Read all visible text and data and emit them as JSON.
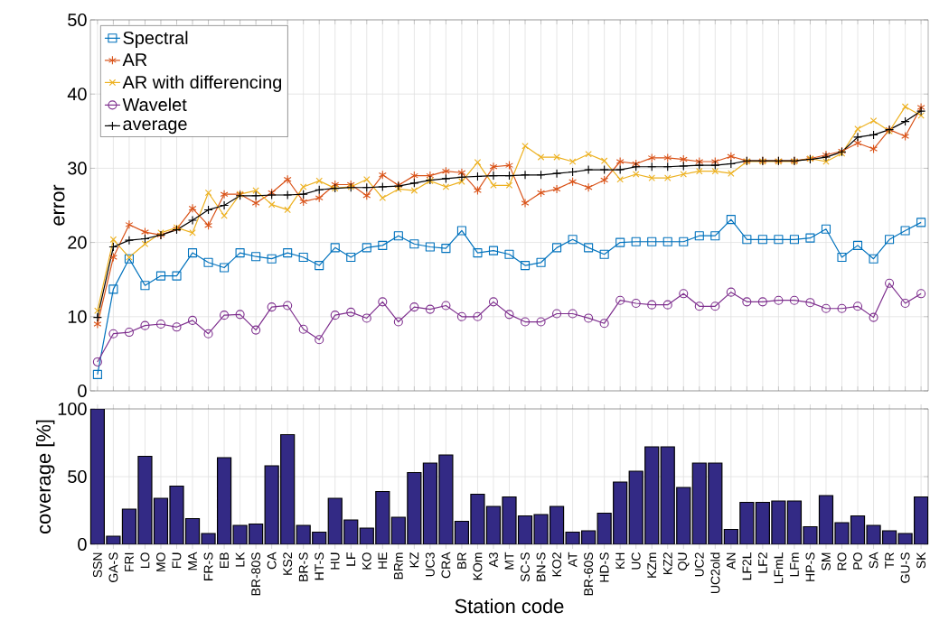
{
  "chart_data": [
    {
      "type": "line",
      "ylabel": "error",
      "ylim": [
        0,
        50
      ],
      "yticks": [
        0,
        10,
        20,
        30,
        40,
        50
      ],
      "grid": true,
      "legend": "top left",
      "tick_labels": "y",
      "series": [
        {
          "name": "Spectral",
          "color": "#0072bd",
          "marker": "square",
          "values": [
            2.2,
            13.7,
            17.8,
            14.2,
            15.5,
            15.5,
            18.6,
            17.3,
            16.6,
            18.6,
            18.1,
            17.8,
            18.6,
            18.0,
            16.9,
            19.3,
            18.0,
            19.3,
            19.6,
            20.9,
            19.8,
            19.4,
            19.2,
            21.6,
            18.6,
            18.9,
            18.4,
            16.9,
            17.3,
            19.3,
            20.4,
            19.3,
            18.4,
            20.0,
            20.1,
            20.1,
            20.1,
            20.1,
            20.9,
            20.9,
            23.1,
            20.4,
            20.4,
            20.4,
            20.4,
            20.6,
            21.8,
            18.0,
            19.6,
            17.8,
            20.4,
            21.6,
            22.7
          ]
        },
        {
          "name": "AR",
          "color": "#d95319",
          "marker": "cross",
          "values": [
            9.0,
            18.0,
            22.4,
            21.4,
            21.0,
            21.8,
            24.6,
            22.3,
            26.5,
            26.5,
            25.3,
            26.7,
            28.5,
            25.5,
            26.0,
            27.8,
            27.8,
            26.3,
            29.1,
            27.7,
            29.0,
            29.0,
            29.6,
            29.4,
            27.0,
            30.2,
            30.4,
            25.3,
            26.7,
            27.2,
            28.2,
            27.4,
            28.4,
            30.9,
            30.6,
            31.4,
            31.4,
            31.2,
            30.9,
            30.9,
            31.6,
            31.0,
            31.0,
            31.0,
            31.0,
            31.3,
            31.8,
            32.3,
            33.4,
            32.6,
            35.2,
            34.3,
            38.2
          ]
        },
        {
          "name": "AR with differencing",
          "color": "#edb120",
          "marker": "cross",
          "values": [
            10.8,
            20.4,
            18.0,
            19.8,
            21.3,
            22.0,
            21.3,
            26.7,
            23.6,
            26.5,
            27.0,
            25.1,
            24.4,
            27.5,
            28.3,
            27.3,
            27.5,
            28.5,
            26.0,
            27.2,
            27.0,
            28.3,
            27.5,
            28.2,
            30.8,
            27.7,
            27.7,
            33.0,
            31.5,
            31.5,
            30.9,
            31.9,
            31.0,
            28.5,
            29.2,
            28.7,
            28.7,
            29.2,
            29.6,
            29.6,
            29.3,
            30.9,
            30.9,
            30.9,
            30.9,
            31.3,
            30.9,
            32.0,
            35.3,
            36.4,
            35.0,
            38.3,
            37.1
          ]
        },
        {
          "name": "Wavelet",
          "color": "#7e2f8e",
          "marker": "circle",
          "values": [
            3.9,
            7.7,
            7.9,
            8.8,
            9.0,
            8.6,
            9.5,
            7.7,
            10.2,
            10.3,
            8.2,
            11.3,
            11.5,
            8.3,
            6.9,
            10.2,
            10.6,
            9.8,
            12.0,
            9.3,
            11.3,
            11.0,
            11.5,
            10.0,
            10.0,
            12.0,
            10.3,
            9.3,
            9.3,
            10.4,
            10.4,
            9.8,
            9.1,
            12.2,
            11.8,
            11.6,
            11.6,
            13.1,
            11.4,
            11.4,
            13.3,
            12.0,
            12.0,
            12.2,
            12.2,
            11.9,
            11.1,
            11.1,
            11.4,
            9.9,
            14.5,
            11.8,
            13.1
          ]
        },
        {
          "name": "average",
          "color": "#000000",
          "marker": "plus",
          "values": [
            9.9,
            19.4,
            20.3,
            20.5,
            21.0,
            21.7,
            23.0,
            24.4,
            25.0,
            26.3,
            26.3,
            26.4,
            26.4,
            26.5,
            27.1,
            27.3,
            27.4,
            27.4,
            27.5,
            27.6,
            28.0,
            28.4,
            28.6,
            28.8,
            28.9,
            29.0,
            29.0,
            29.1,
            29.1,
            29.3,
            29.5,
            29.8,
            29.8,
            29.8,
            30.2,
            30.2,
            30.2,
            30.3,
            30.4,
            30.4,
            30.6,
            31.0,
            31.0,
            31.0,
            31.0,
            31.2,
            31.5,
            32.2,
            34.2,
            34.5,
            35.2,
            36.3,
            37.7
          ]
        }
      ]
    },
    {
      "type": "bar",
      "xlabel": "Station code",
      "ylabel": "coverage [%]",
      "ylim": [
        0,
        100
      ],
      "yticks": [
        0,
        50,
        100
      ],
      "grid": true,
      "color": "#332a85",
      "categories": [
        "SSN",
        "GA-S",
        "FRI",
        "LO",
        "MO",
        "FU",
        "MA",
        "FR-S",
        "EB",
        "LK",
        "BR-80S",
        "CA",
        "KS2",
        "BR-S",
        "HT-S",
        "HU",
        "LF",
        "KO",
        "HE",
        "BRm",
        "KZ",
        "UC3",
        "CRA",
        "BR",
        "KOm",
        "A3",
        "MT",
        "SC-S",
        "BN-S",
        "KO2",
        "AT",
        "BR-60S",
        "HD-S",
        "KH",
        "UC",
        "KZm",
        "KZ2",
        "QU",
        "UC2",
        "UC2old",
        "AN",
        "LF2L",
        "LF2",
        "LFmL",
        "LFm",
        "HP-S",
        "SM",
        "RO",
        "PO",
        "SA",
        "TR",
        "GU-S",
        "SK"
      ],
      "values": [
        100,
        6,
        26,
        65,
        34,
        43,
        19,
        8,
        64,
        14,
        15,
        58,
        81,
        14,
        9,
        34,
        18,
        12,
        39,
        20,
        53,
        60,
        66,
        17,
        37,
        28,
        35,
        21,
        22,
        28,
        9,
        10,
        23,
        46,
        54,
        72,
        72,
        42,
        60,
        60,
        11,
        31,
        31,
        32,
        32,
        13,
        36,
        16,
        21,
        14,
        10,
        8,
        35
      ]
    }
  ]
}
